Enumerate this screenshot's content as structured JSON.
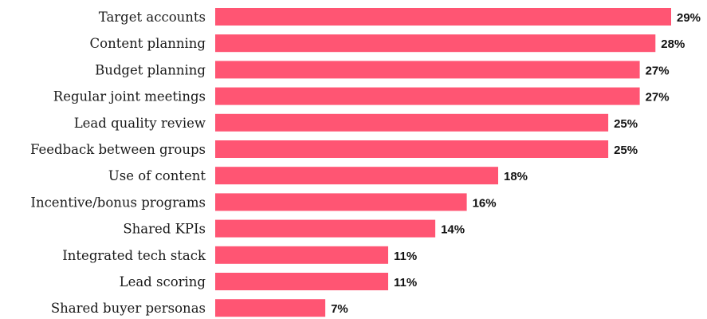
{
  "chart_data": {
    "type": "bar",
    "orientation": "horizontal",
    "categories": [
      "Target accounts",
      "Content planning",
      "Budget planning",
      "Regular joint meetings",
      "Lead quality review",
      "Feedback between groups",
      "Use of content",
      "Incentive/bonus programs",
      "Shared KPIs",
      "Integrated tech stack",
      "Lead scoring",
      "Shared buyer personas"
    ],
    "values": [
      29,
      28,
      27,
      27,
      25,
      25,
      18,
      16,
      14,
      11,
      11,
      7
    ],
    "value_labels": [
      "29%",
      "28%",
      "27%",
      "27%",
      "25%",
      "25%",
      "18%",
      "16%",
      "14%",
      "11%",
      "11%",
      "7%"
    ],
    "unit": "%",
    "title": "",
    "xlabel": "",
    "ylabel": "",
    "xlim": [
      0,
      29
    ],
    "grid": false,
    "legend": "none",
    "bar_color": "#ff5573"
  }
}
